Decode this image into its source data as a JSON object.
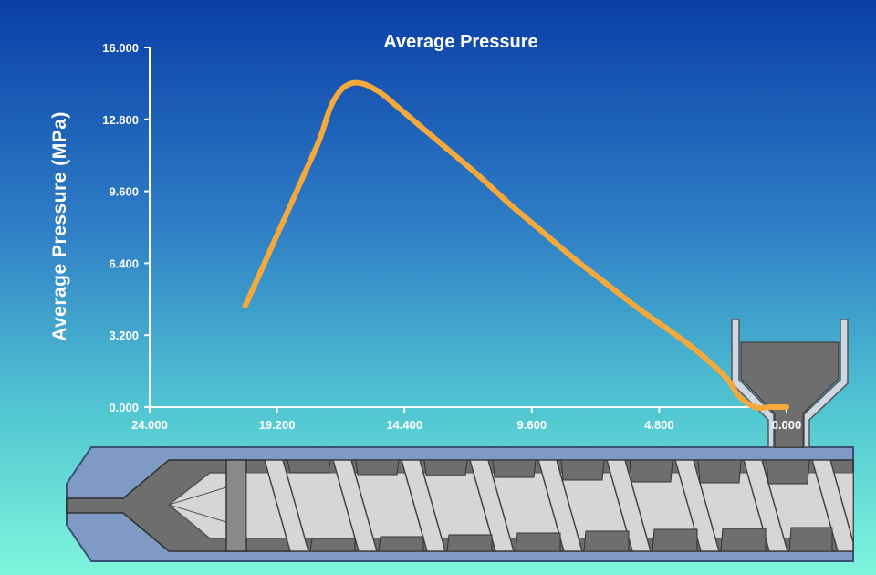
{
  "chart_data": {
    "type": "line",
    "title": "Average Pressure",
    "ylabel": "Average Pressure (MPa)",
    "xlabel": "",
    "xlim": [
      24.0,
      0.0
    ],
    "ylim": [
      0.0,
      16.0
    ],
    "x_reversed": true,
    "grid": false,
    "legend": "none",
    "x_tick_labels": [
      "24.000",
      "19.200",
      "14.400",
      "9.600",
      "4.800",
      "0.000"
    ],
    "y_tick_labels": [
      "0.000",
      "3.200",
      "6.400",
      "9.600",
      "12.800",
      "16.000"
    ],
    "x_tick_values": [
      24.0,
      19.2,
      14.4,
      9.6,
      4.8,
      0.0
    ],
    "y_tick_values": [
      0.0,
      3.2,
      6.4,
      9.6,
      12.8,
      16.0
    ],
    "series": [
      {
        "color": "#f5a93a",
        "x": [
          20.4,
          19.6,
          18.8,
          18.2,
          17.6,
          17.2,
          16.8,
          16.4,
          16.0,
          15.6,
          15.2,
          14.8,
          14.0,
          13.2,
          12.4,
          11.6,
          10.4,
          9.2,
          8.0,
          6.8,
          5.6,
          4.4,
          3.6,
          2.8,
          2.2,
          1.8,
          1.2,
          0.6,
          0.0
        ],
        "y": [
          4.5,
          6.6,
          8.7,
          10.3,
          11.9,
          13.3,
          14.1,
          14.4,
          14.4,
          14.2,
          13.9,
          13.5,
          12.7,
          11.9,
          11.1,
          10.3,
          9.0,
          7.8,
          6.6,
          5.5,
          4.4,
          3.4,
          2.7,
          1.9,
          1.2,
          0.5,
          0.0,
          0.0,
          0.0
        ]
      }
    ]
  },
  "colors": {
    "curve": "#f5a93a",
    "barrel": "#7f9ac4",
    "screw_flight": "#d6d6d6",
    "channel": "#6e6e6e",
    "hopper": "#6e6e6e"
  }
}
